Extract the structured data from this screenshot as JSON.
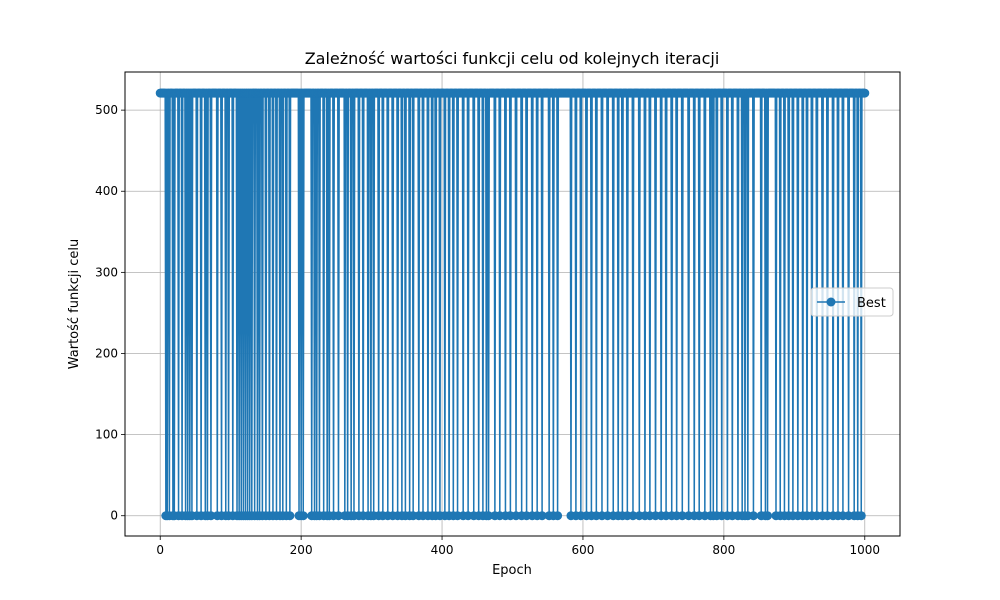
{
  "chart_data": {
    "type": "line",
    "title": "Zależność wartości funkcji celu od kolejnych iteracji",
    "xlabel": "Epoch",
    "ylabel": "Wartość funkcji celu",
    "xlim": [
      -50,
      1050
    ],
    "ylim": [
      -25,
      547
    ],
    "xticks": [
      0,
      200,
      400,
      600,
      800,
      1000
    ],
    "yticks": [
      0,
      100,
      200,
      300,
      400,
      500
    ],
    "grid": true,
    "legend_position": "center-right",
    "high_value": 521,
    "low_value": 0,
    "x_start": 0,
    "x_end": 1000,
    "low_epochs": [
      8,
      10,
      13,
      18,
      20,
      26,
      31,
      36,
      39,
      42,
      45,
      52,
      58,
      64,
      67,
      72,
      81,
      87,
      93,
      97,
      103,
      109,
      112,
      115,
      118,
      121,
      124,
      127,
      130,
      134,
      138,
      141,
      145,
      150,
      155,
      160,
      165,
      170,
      174,
      179,
      184,
      197,
      200,
      203,
      215,
      219,
      222,
      226,
      232,
      237,
      240,
      246,
      253,
      262,
      266,
      271,
      275,
      282,
      288,
      295,
      299,
      303,
      310,
      316,
      323,
      330,
      337,
      343,
      348,
      354,
      359,
      367,
      373,
      380,
      386,
      391,
      397,
      404,
      410,
      416,
      422,
      430,
      437,
      445,
      452,
      458,
      463,
      466,
      475,
      482,
      490,
      497,
      505,
      513,
      520,
      528,
      535,
      542,
      552,
      558,
      564,
      583,
      590,
      597,
      605,
      612,
      619,
      627,
      635,
      643,
      650,
      656,
      663,
      671,
      680,
      688,
      695,
      703,
      711,
      718,
      726,
      733,
      741,
      750,
      758,
      765,
      773,
      781,
      785,
      790,
      797,
      805,
      812,
      820,
      826,
      830,
      834,
      842,
      853,
      859,
      862,
      874,
      880,
      886,
      892,
      898,
      905,
      912,
      918,
      925,
      932,
      940,
      947,
      955,
      962,
      969,
      977,
      985,
      990,
      995
    ],
    "series": [
      {
        "name": "Best",
        "color": "#1f77b4",
        "marker": "circle"
      }
    ]
  }
}
